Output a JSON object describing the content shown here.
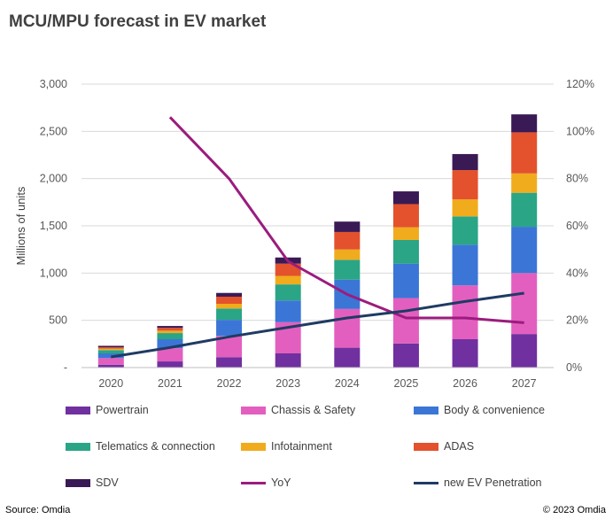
{
  "title": "MCU/MPU forecast in EV market",
  "source": "Source: Omdia",
  "copyright": "© 2023 Omdia",
  "chart_data": {
    "type": "bar",
    "stacked": true,
    "title": "MCU/MPU forecast in EV market",
    "ylabel": "Millions of units",
    "ylim": [
      0,
      3000
    ],
    "y_ticks": [
      "-",
      "500",
      "1,000",
      "1,500",
      "2,000",
      "2,500",
      "3,000"
    ],
    "y2lim": [
      0,
      120
    ],
    "y2_ticks": [
      "0%",
      "20%",
      "40%",
      "60%",
      "80%",
      "100%",
      "120%"
    ],
    "categories": [
      "2020",
      "2021",
      "2022",
      "2023",
      "2024",
      "2025",
      "2026",
      "2027"
    ],
    "series": [
      {
        "name": "Powertrain",
        "type": "bar",
        "color": "#7030a0",
        "values": [
          30,
          65,
          110,
          150,
          210,
          255,
          300,
          355
        ]
      },
      {
        "name": "Chassis & Safety",
        "type": "bar",
        "color": "#e35fbf",
        "values": [
          70,
          140,
          225,
          330,
          410,
          480,
          570,
          645
        ]
      },
      {
        "name": "Body & convenience",
        "type": "bar",
        "color": "#3b76d6",
        "values": [
          50,
          95,
          170,
          230,
          310,
          365,
          430,
          490
        ]
      },
      {
        "name": "Telematics & connection",
        "type": "bar",
        "color": "#2aa586",
        "values": [
          35,
          65,
          120,
          170,
          210,
          250,
          300,
          360
        ]
      },
      {
        "name": "Infotainment",
        "type": "bar",
        "color": "#f0ac1c",
        "values": [
          15,
          25,
          50,
          90,
          110,
          135,
          180,
          205
        ]
      },
      {
        "name": "ADAS",
        "type": "bar",
        "color": "#e3522c",
        "values": [
          15,
          30,
          75,
          130,
          185,
          245,
          310,
          435
        ]
      },
      {
        "name": "SDV",
        "type": "bar",
        "color": "#3a1a55",
        "values": [
          15,
          20,
          40,
          65,
          110,
          135,
          170,
          190
        ]
      },
      {
        "name": "YoY",
        "type": "line",
        "axis": "right",
        "color": "#9b1c7e",
        "values": [
          null,
          106,
          80,
          45,
          31,
          21,
          21,
          19
        ]
      },
      {
        "name": "new EV Penetration",
        "type": "line",
        "axis": "right",
        "color": "#1f3b64",
        "values": [
          4.5,
          8.5,
          13,
          17,
          21,
          24,
          28,
          31.5
        ]
      }
    ],
    "legend_position": "bottom"
  }
}
